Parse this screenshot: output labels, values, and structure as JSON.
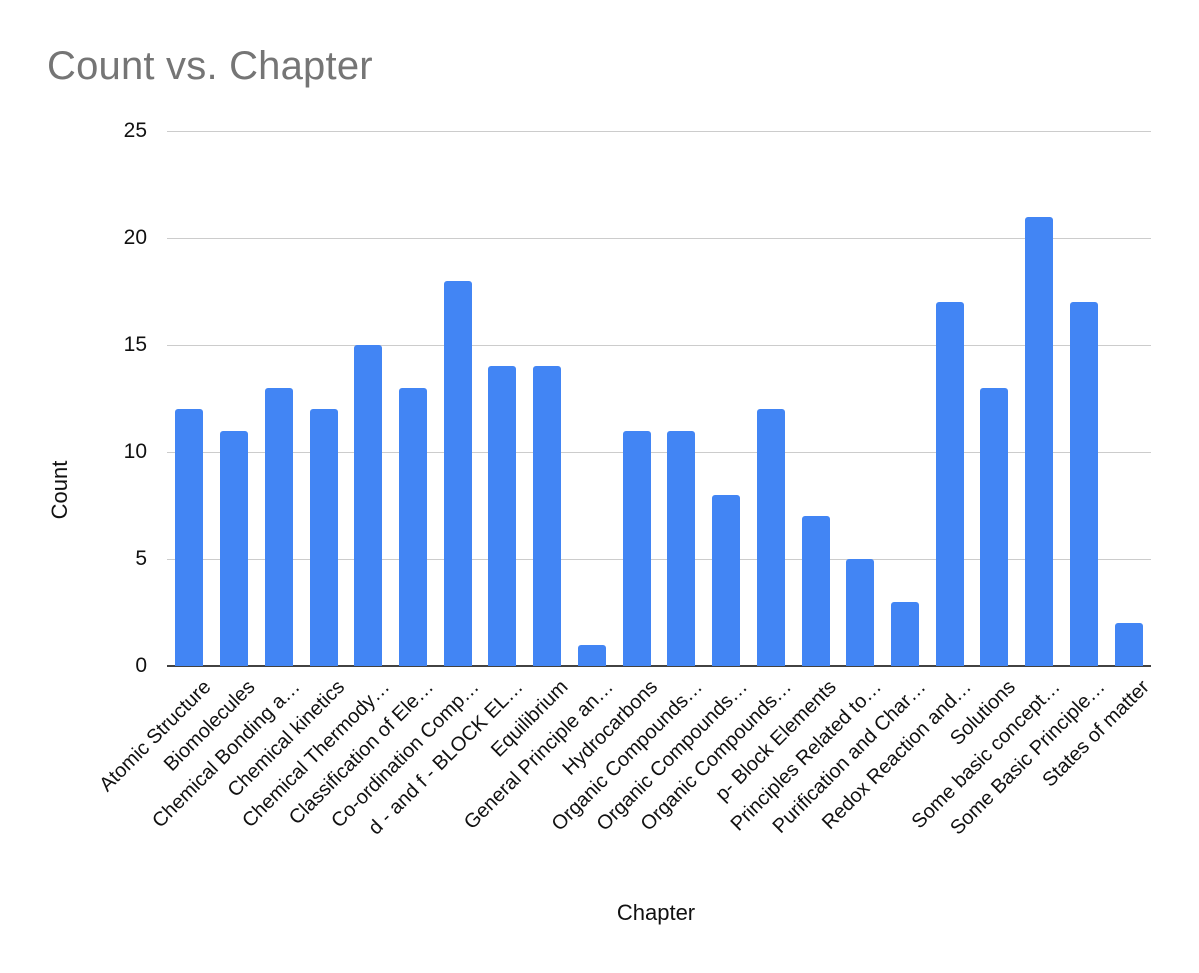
{
  "title": "Count vs. Chapter",
  "colors": {
    "bar": "#4285f4",
    "title_text": "#757575",
    "axis_text": "#111111",
    "gridline": "#cccccc",
    "zero_line": "#424242",
    "background": "#ffffff"
  },
  "chart_data": {
    "type": "bar",
    "title": "Count vs. Chapter",
    "xlabel": "Chapter",
    "ylabel": "Count",
    "categories": [
      "Atomic Structure",
      "Biomolecules",
      "Chemical Bonding a…",
      "Chemical kinetics",
      "Chemical Thermody…",
      "Classification of Ele…",
      "Co-ordination Comp…",
      "d - and f - BLOCK EL…",
      "Equilibrium",
      "General Principle an…",
      "Hydrocarbons",
      "Organic Compounds…",
      "Organic Compounds…",
      "Organic Compounds…",
      "p- Block Elements",
      "Principles Related to…",
      "Purification and Char…",
      "Redox Reaction and…",
      "Solutions",
      "Some basic concept…",
      "Some Basic Principle…",
      "States of matter"
    ],
    "values": [
      12,
      11,
      13,
      12,
      15,
      13,
      18,
      14,
      14,
      1,
      11,
      11,
      8,
      12,
      7,
      5,
      3,
      17,
      13,
      21,
      17,
      2
    ],
    "ylim": [
      0,
      25
    ],
    "yticks": [
      0,
      5,
      10,
      15,
      20,
      25
    ],
    "grid": "horizontal",
    "legend_position": "none",
    "bar_color": "#4285f4"
  }
}
